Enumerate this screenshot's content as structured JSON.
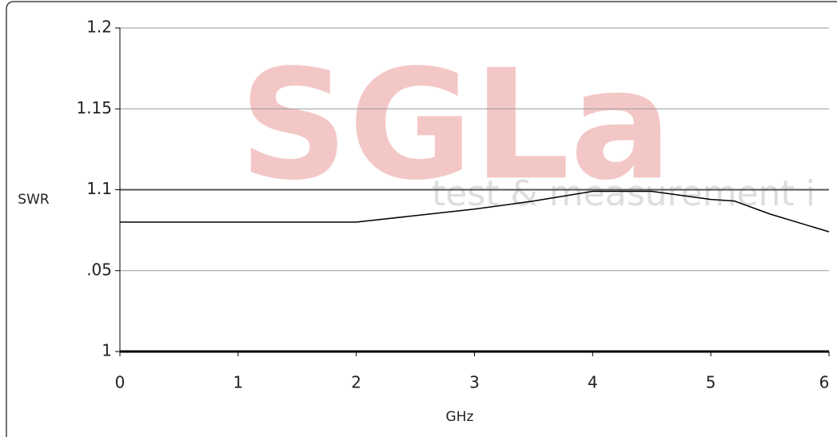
{
  "chart_data": {
    "type": "line",
    "watermark": {
      "brand": "SGLa",
      "tagline": "test & measurement i"
    },
    "x_label": "GHz",
    "y_label": "SWR",
    "x": [
      0,
      1,
      2,
      2.5,
      3,
      3.5,
      4,
      4.5,
      5,
      5.2,
      5.5,
      6
    ],
    "series": [
      {
        "color": "#000000",
        "values": [
          1.08,
          1.08,
          1.08,
          1.084,
          1.088,
          1.093,
          1.099,
          1.099,
          1.094,
          1.093,
          1.085,
          1.074
        ]
      }
    ],
    "reference": 1.1,
    "xlim": [
      0,
      6
    ],
    "xticks": [
      0,
      1,
      2,
      3,
      4,
      5,
      6
    ],
    "ylim": [
      1,
      1.2
    ],
    "yticks": [
      1,
      {
        "value": 1.05,
        "label": ".05"
      },
      1.1,
      1.15,
      1.2
    ],
    "grid": true
  }
}
